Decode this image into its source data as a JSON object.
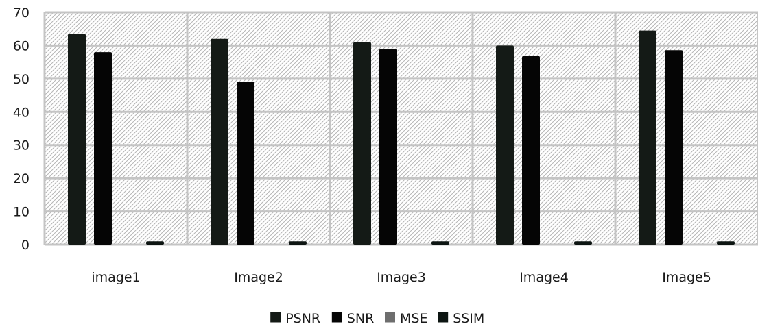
{
  "chart_data": {
    "type": "bar",
    "title": "",
    "xlabel": "",
    "ylabel": "",
    "categories": [
      "image1",
      "Image2",
      "Image3",
      "Image4",
      "Image5"
    ],
    "ylim": [
      0,
      70
    ],
    "yticks": [
      0,
      10,
      20,
      30,
      40,
      50,
      60,
      70
    ],
    "grid": true,
    "legend_position": "bottom",
    "series": [
      {
        "name": "PSNR",
        "values": [
          63.5,
          62.0,
          61.0,
          60.0,
          64.5
        ],
        "color": "#141a16"
      },
      {
        "name": "SNR",
        "values": [
          58.0,
          49.0,
          59.0,
          56.8,
          58.6
        ],
        "color": "#050505"
      },
      {
        "name": "MSE",
        "values": [
          0.0,
          0.0,
          0.0,
          0.0,
          0.0
        ],
        "color": "#6e6e6e"
      },
      {
        "name": "SSIM",
        "values": [
          0.99,
          0.99,
          0.99,
          0.99,
          0.99
        ],
        "color": "#0d1512"
      }
    ]
  }
}
